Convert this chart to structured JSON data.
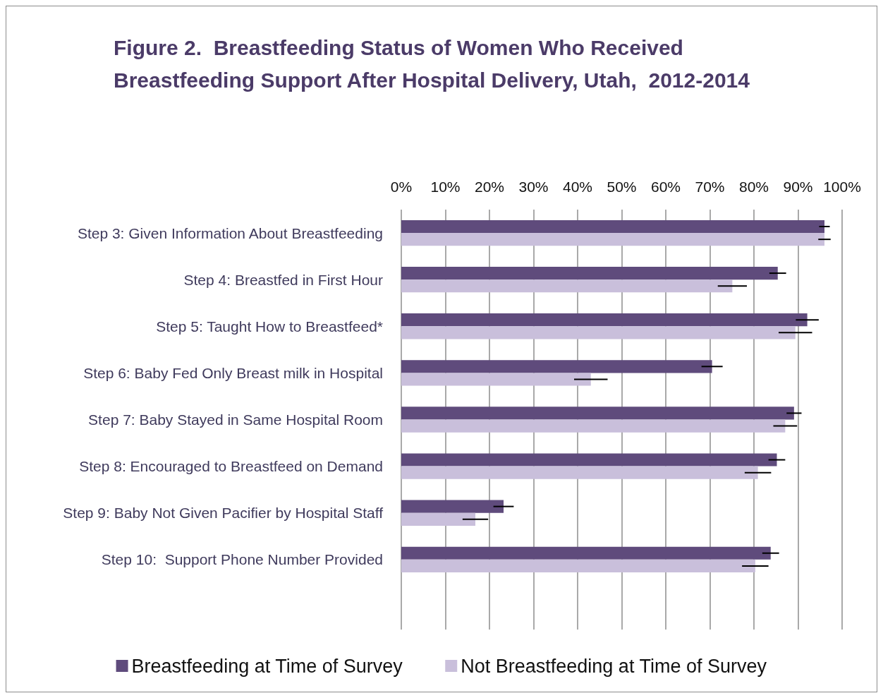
{
  "chart_data": {
    "type": "bar",
    "orientation": "horizontal",
    "title": "Figure 2.  Breastfeeding Status of Women Who Received Breastfeeding Support After Hospital Delivery, Utah,  2012-2014",
    "categories": [
      "Step 3: Given Information About Breastfeeding",
      "Step 4: Breastfed in First Hour",
      "Step 5: Taught How to Breastfeed*",
      "Step 6: Baby Fed Only Breast milk in Hospital",
      "Step 7: Baby Stayed in Same Hospital Room",
      "Step 8: Encouraged to Breastfeed on Demand",
      "Step 9: Baby Not Given Pacifier by Hospital Staff",
      "Step 10:  Support Phone Number Provided",
      null
    ],
    "series": [
      {
        "name": "Breastfeeding at Time of Survey",
        "color": "#5f4b7c",
        "values": [
          96.0,
          85.4,
          92.1,
          70.5,
          89.1,
          85.2,
          23.2,
          83.8,
          null
        ],
        "errors": [
          1.2,
          1.9,
          2.6,
          2.4,
          1.7,
          1.9,
          2.3,
          1.9,
          null
        ]
      },
      {
        "name": "Not Breastfeeding at Time of Survey",
        "color": "#c9bfdb",
        "values": [
          96.0,
          75.1,
          89.4,
          43.0,
          87.1,
          80.9,
          16.8,
          80.3,
          null
        ],
        "errors": [
          1.4,
          3.3,
          3.8,
          3.8,
          2.7,
          3.0,
          2.9,
          3.0,
          null
        ]
      }
    ],
    "xlim": [
      0,
      100
    ],
    "xticks": [
      {
        "value": 0,
        "label": "0%"
      },
      {
        "value": 10,
        "label": "10%"
      },
      {
        "value": 20,
        "label": "20%"
      },
      {
        "value": 30,
        "label": "30%"
      },
      {
        "value": 40,
        "label": "40%"
      },
      {
        "value": 50,
        "label": "50%"
      },
      {
        "value": 60,
        "label": "60%"
      },
      {
        "value": 70,
        "label": "70%"
      },
      {
        "value": 80,
        "label": "80%"
      },
      {
        "value": 90,
        "label": "90%"
      },
      {
        "value": 100,
        "label": "100%"
      }
    ],
    "grid": "x",
    "legend": "bottom"
  }
}
